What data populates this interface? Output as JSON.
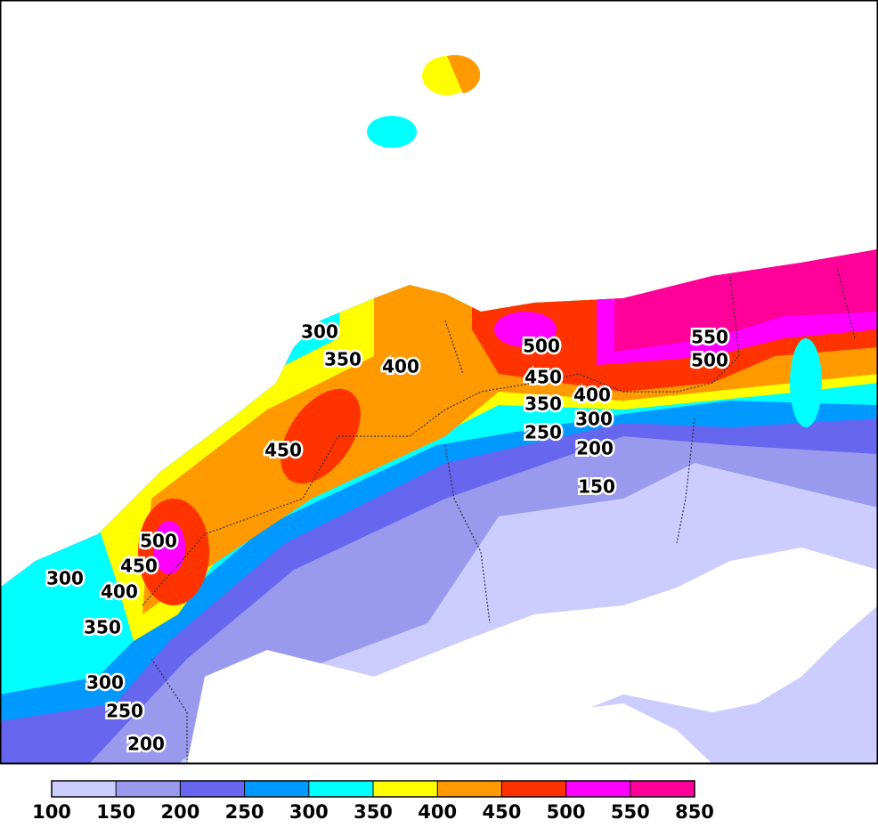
{
  "map": {
    "contour_labels": [
      300,
      350,
      400,
      450,
      500,
      450,
      400,
      350,
      300,
      250,
      200,
      150,
      550,
      500,
      500,
      450,
      400,
      300,
      350,
      300,
      250,
      200
    ]
  },
  "colorbar": {
    "ticks": [
      100,
      150,
      200,
      250,
      300,
      350,
      400,
      450,
      500,
      550,
      850
    ],
    "colors": [
      "#ccccff",
      "#9999ee",
      "#6666ee",
      "#0099ff",
      "#00ffff",
      "#ffff00",
      "#ff9900",
      "#ff3300",
      "#ff00ff",
      "#ff0099"
    ]
  }
}
